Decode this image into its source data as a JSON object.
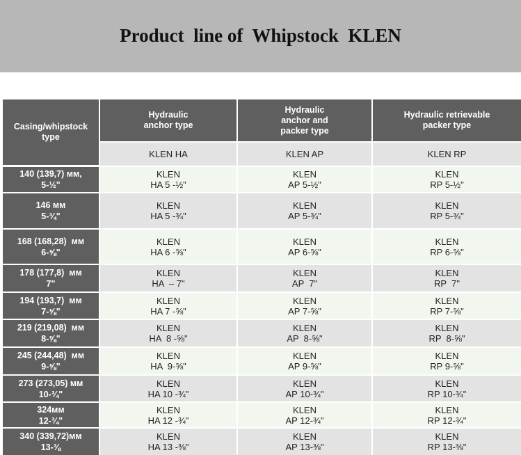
{
  "title": "Product  line of  Whipstock  KLEN",
  "header": {
    "corner": "Casing/whipstock\ntype",
    "columns": [
      "Hydraulic\nanchor type",
      "Hydraulic\nanchor and\npacker type",
      "Hydraulic retrievable\npacker type"
    ],
    "models": [
      "KLEN HA",
      "KLEN AP",
      "KLEN RP"
    ]
  },
  "rows": [
    {
      "casing": "140 (139,7) мм,\n5-½\"",
      "ha": "KLEN\nHA 5 -½\"",
      "ap": "KLEN\nAP 5-½\"",
      "rp": "KLEN\nRP 5-½\""
    },
    {
      "casing": "146 мм\n5-¾\"",
      "ha": "KLEN\nHA 5 -¾\"",
      "ap": "KLEN\nAP 5-¾\"",
      "rp": "KLEN\nRP 5-¾\""
    },
    {
      "casing": "168 (168,28)  мм\n6-⅝\"",
      "ha": "KLEN\nHA 6 -⅝\"",
      "ap": "KLEN\nAP 6-⅝\"",
      "rp": "KLEN\nRP 6-⅝\""
    },
    {
      "casing": "178 (177,8)  мм\n7\"",
      "ha": "KLEN\nHA  – 7\"",
      "ap": "KLEN\nAP  7\"",
      "rp": "KLEN\nRP  7\""
    },
    {
      "casing": "194 (193,7)  мм\n7-⅝\"",
      "ha": "KLEN\nHA 7 -⅝\"",
      "ap": "KLEN\nAP 7-⅝\"",
      "rp": "KLEN\nRP 7-⅝\""
    },
    {
      "casing": "219 (219,08)  мм\n8-⅝\"",
      "ha": "KLEN\nHA  8 -⅝\"",
      "ap": "KLEN\nAP  8-⅝\"",
      "rp": "KLEN\nRP  8-⅝\""
    },
    {
      "casing": "245 (244,48)  мм\n9-⅝\"",
      "ha": "KLEN\nHA  9-⅝\"",
      "ap": "KLEN\nAP 9-⅝\"",
      "rp": "KLEN\nRP 9-⅝\""
    },
    {
      "casing": "273 (273,05) мм\n10-¾\"",
      "ha": "KLEN\nHA 10 -¾\"",
      "ap": "KLEN\nAP 10-¾\"",
      "rp": "KLEN\nRP 10-¾\""
    },
    {
      "casing": "324мм\n12-¾\"",
      "ha": "KLEN\nHA 12 -¾\"",
      "ap": "KLEN\nAP 12-¾\"",
      "rp": "KLEN\nRP 12-¾\""
    },
    {
      "casing": "340 (339,72)мм\n13-⅜",
      "ha": "KLEN\nHA 13 -⅜\"",
      "ap": "KLEN\nAP 13-⅜\"",
      "rp": "KLEN\nRP 13-⅜\""
    }
  ],
  "colors": {
    "banner": "#b7b7b7",
    "header_bg": "#5f5f5f",
    "row_even": "#f1f7ee",
    "row_odd": "#e3e3e3"
  }
}
